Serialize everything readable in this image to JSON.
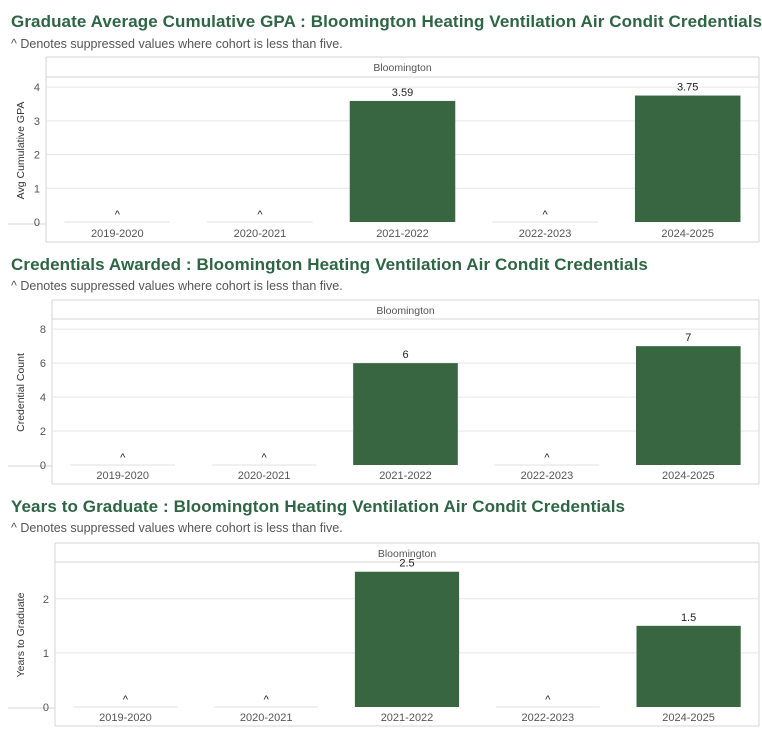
{
  "colors": {
    "bar": "#376640",
    "title": "#2e6544",
    "axis_text": "#555555",
    "grid": "#e6e6e6",
    "border": "#d4d4d4"
  },
  "chart_data": [
    {
      "type": "bar",
      "title": "Graduate Average Cumulative GPA : Bloomington Heating Ventilation Air Condit Credentials",
      "subtitle": "^ Denotes suppressed values where cohort is less than five.",
      "panel": "Bloomington",
      "ylabel": "Avg Cumulative GPA",
      "xlabel": "",
      "categories": [
        "2019-2020",
        "2020-2021",
        "2021-2022",
        "2022-2023",
        "2024-2025"
      ],
      "values": [
        null,
        null,
        3.59,
        null,
        3.75
      ],
      "labels": [
        "^",
        "^",
        "3.59",
        "^",
        "3.75"
      ],
      "yticks": [
        "0",
        "1",
        "2",
        "3",
        "4"
      ],
      "ylim": [
        0,
        4.3
      ],
      "grid": true
    },
    {
      "type": "bar",
      "title": "Credentials Awarded : Bloomington Heating Ventilation Air Condit Credentials",
      "subtitle": "^ Denotes suppressed values where cohort is less than five.",
      "panel": "Bloomington",
      "ylabel": "Credential Count",
      "xlabel": "",
      "categories": [
        "2019-2020",
        "2020-2021",
        "2021-2022",
        "2022-2023",
        "2024-2025"
      ],
      "values": [
        null,
        null,
        6,
        null,
        7
      ],
      "labels": [
        "^",
        "^",
        "6",
        "^",
        "7"
      ],
      "yticks": [
        "0",
        "2",
        "4",
        "6",
        "8"
      ],
      "ylim": [
        0,
        8.6
      ],
      "grid": true
    },
    {
      "type": "bar",
      "title": "Years to Graduate : Bloomington Heating Ventilation Air Condit Credentials",
      "subtitle": "^ Denotes suppressed values where cohort is less than five.",
      "panel": "Bloomington",
      "ylabel": "Years to Graduate",
      "xlabel": "",
      "categories": [
        "2019-2020",
        "2020-2021",
        "2021-2022",
        "2022-2023",
        "2024-2025"
      ],
      "values": [
        null,
        null,
        2.5,
        null,
        1.5
      ],
      "labels": [
        "^",
        "^",
        "2.5",
        "^",
        "1.5"
      ],
      "yticks": [
        "0",
        "1",
        "2"
      ],
      "ylim": [
        0,
        2.68
      ],
      "grid": true
    }
  ]
}
